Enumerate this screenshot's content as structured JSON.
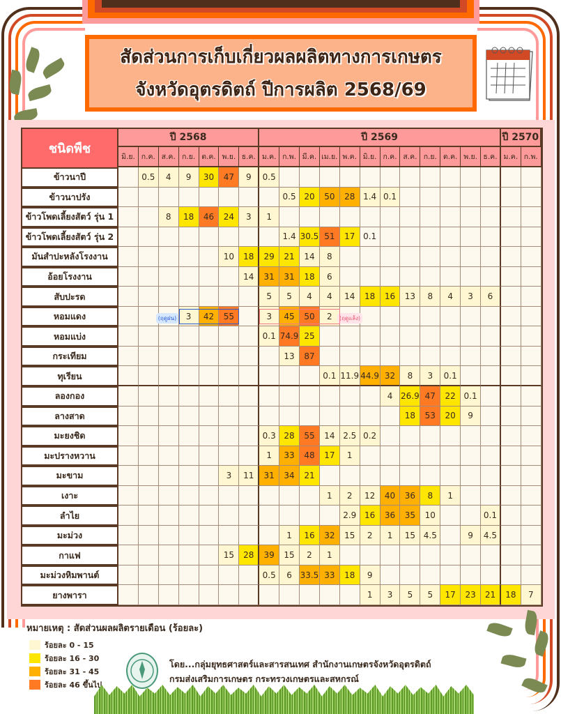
{
  "header": {
    "title_line1": "สัดส่วนการเก็บเกี่ยวผลผลิตทางการเกษตร",
    "title_line2": "จังหวัดอุตรดิตถ์  ปีการผลิต 2568/69"
  },
  "table": {
    "crop_header": "ชนิดพืช",
    "years": [
      {
        "label": "ปี 2568",
        "span": 7
      },
      {
        "label": "ปี 2569",
        "span": 12
      },
      {
        "label": "ปี 2570",
        "span": 2
      }
    ],
    "months": [
      "มิ.ย.",
      "ก.ค.",
      "ส.ค.",
      "ก.ย.",
      "ต.ค.",
      "พ.ย.",
      "ธ.ค.",
      "ม.ค.",
      "ก.พ.",
      "มี.ค.",
      "เม.ย.",
      "พ.ค.",
      "มิ.ย.",
      "ก.ค.",
      "ส.ค.",
      "ก.ย.",
      "ต.ค.",
      "พ.ย.",
      "ธ.ค.",
      "ม.ค.",
      "ก.พ."
    ],
    "rows": [
      {
        "crop": "ข้าวนาปี",
        "values": [
          "",
          "0.5",
          "4",
          "9",
          "30",
          "47",
          "9",
          "0.5",
          "",
          "",
          "",
          "",
          "",
          "",
          "",
          "",
          "",
          "",
          "",
          "",
          ""
        ],
        "levels": [
          0,
          1,
          1,
          1,
          2,
          4,
          1,
          1,
          0,
          0,
          0,
          0,
          0,
          0,
          0,
          0,
          0,
          0,
          0,
          0,
          0
        ]
      },
      {
        "crop": "ข้าวนาปรัง",
        "values": [
          "",
          "",
          "",
          "",
          "",
          "",
          "",
          "",
          "0.5",
          "20",
          "50",
          "28",
          "1.4",
          "0.1",
          "",
          "",
          "",
          "",
          "",
          "",
          ""
        ],
        "levels": [
          0,
          0,
          0,
          0,
          0,
          0,
          0,
          0,
          1,
          2,
          3,
          3,
          1,
          1,
          0,
          0,
          0,
          0,
          0,
          0,
          0
        ]
      },
      {
        "crop": "ข้าวโพดเลี้ยงสัตว์ รุ่น 1",
        "values": [
          "",
          "",
          "8",
          "18",
          "46",
          "24",
          "3",
          "1",
          "",
          "",
          "",
          "",
          "",
          "",
          "",
          "",
          "",
          "",
          "",
          "",
          ""
        ],
        "levels": [
          0,
          0,
          1,
          2,
          4,
          2,
          1,
          1,
          0,
          0,
          0,
          0,
          0,
          0,
          0,
          0,
          0,
          0,
          0,
          0,
          0
        ]
      },
      {
        "crop": "ข้าวโพดเลี้ยงสัตว์ รุ่น 2",
        "values": [
          "",
          "",
          "",
          "",
          "",
          "",
          "",
          "",
          "1.4",
          "30.5",
          "51",
          "17",
          "0.1",
          "",
          "",
          "",
          "",
          "",
          "",
          "",
          ""
        ],
        "levels": [
          0,
          0,
          0,
          0,
          0,
          0,
          0,
          0,
          1,
          2,
          4,
          2,
          0,
          0,
          0,
          0,
          0,
          0,
          0,
          0,
          0
        ]
      },
      {
        "crop": "มันสำปะหลังโรงงาน",
        "values": [
          "",
          "",
          "",
          "",
          "",
          "10",
          "18",
          "29",
          "21",
          "14",
          "8",
          "",
          "",
          "",
          "",
          "",
          "",
          "",
          "",
          "",
          ""
        ],
        "levels": [
          0,
          0,
          0,
          0,
          0,
          1,
          2,
          2,
          2,
          1,
          1,
          0,
          0,
          0,
          0,
          0,
          0,
          0,
          0,
          0,
          0
        ]
      },
      {
        "crop": "อ้อยโรงงาน",
        "values": [
          "",
          "",
          "",
          "",
          "",
          "",
          "14",
          "31",
          "31",
          "18",
          "6",
          "",
          "",
          "",
          "",
          "",
          "",
          "",
          "",
          "",
          ""
        ],
        "levels": [
          0,
          0,
          0,
          0,
          0,
          0,
          1,
          3,
          3,
          2,
          1,
          0,
          0,
          0,
          0,
          0,
          0,
          0,
          0,
          0,
          0
        ]
      },
      {
        "crop": "สับปะรด",
        "values": [
          "",
          "",
          "",
          "",
          "",
          "",
          "",
          "5",
          "5",
          "4",
          "4",
          "14",
          "18",
          "16",
          "13",
          "8",
          "4",
          "3",
          "6",
          "",
          ""
        ],
        "levels": [
          0,
          0,
          0,
          0,
          0,
          0,
          0,
          1,
          1,
          1,
          1,
          1,
          2,
          2,
          1,
          1,
          1,
          1,
          1,
          0,
          0
        ]
      },
      {
        "crop": "หอมแดง",
        "values": [
          "",
          "",
          "",
          "3",
          "42",
          "55",
          "",
          "3",
          "45",
          "50",
          "2",
          "",
          "",
          "",
          "",
          "",
          "",
          "",
          "",
          "",
          ""
        ],
        "levels": [
          0,
          0,
          0,
          1,
          3,
          4,
          0,
          1,
          3,
          4,
          1,
          0,
          0,
          0,
          0,
          0,
          0,
          0,
          0,
          0,
          0
        ],
        "season_notes": [
          "(ฤดูฝน)",
          "(ฤดูแล้ง)"
        ]
      },
      {
        "crop": "หอมแบ่ง",
        "values": [
          "",
          "",
          "",
          "",
          "",
          "",
          "",
          "0.1",
          "74.9",
          "25",
          "",
          "",
          "",
          "",
          "",
          "",
          "",
          "",
          "",
          "",
          ""
        ],
        "levels": [
          0,
          0,
          0,
          0,
          0,
          0,
          0,
          1,
          4,
          2,
          0,
          0,
          0,
          0,
          0,
          0,
          0,
          0,
          0,
          0,
          0
        ]
      },
      {
        "crop": "กระเทียม",
        "values": [
          "",
          "",
          "",
          "",
          "",
          "",
          "",
          "",
          "13",
          "87",
          "",
          "",
          "",
          "",
          "",
          "",
          "",
          "",
          "",
          "",
          ""
        ],
        "levels": [
          0,
          0,
          0,
          0,
          0,
          0,
          0,
          0,
          1,
          4,
          0,
          0,
          0,
          0,
          0,
          0,
          0,
          0,
          0,
          0,
          0
        ]
      },
      {
        "crop": "ทุเรียน",
        "values": [
          "",
          "",
          "",
          "",
          "",
          "",
          "",
          "",
          "",
          "",
          "0.1",
          "11.9",
          "44.9",
          "32",
          "8",
          "3",
          "0.1",
          "",
          "",
          "",
          ""
        ],
        "levels": [
          0,
          0,
          0,
          0,
          0,
          0,
          0,
          0,
          0,
          0,
          1,
          1,
          3,
          3,
          1,
          1,
          1,
          0,
          0,
          0,
          0
        ]
      },
      {
        "crop": "ลองกอง",
        "values": [
          "",
          "",
          "",
          "",
          "",
          "",
          "",
          "",
          "",
          "",
          "",
          "",
          "",
          "4",
          "26.9",
          "47",
          "22",
          "0.1",
          "",
          "",
          ""
        ],
        "levels": [
          0,
          0,
          0,
          0,
          0,
          0,
          0,
          0,
          0,
          0,
          0,
          0,
          0,
          1,
          2,
          4,
          2,
          1,
          0,
          0,
          0
        ]
      },
      {
        "crop": "ลางสาด",
        "values": [
          "",
          "",
          "",
          "",
          "",
          "",
          "",
          "",
          "",
          "",
          "",
          "",
          "",
          "",
          "18",
          "53",
          "20",
          "9",
          "",
          "",
          ""
        ],
        "levels": [
          0,
          0,
          0,
          0,
          0,
          0,
          0,
          0,
          0,
          0,
          0,
          0,
          0,
          0,
          2,
          4,
          2,
          1,
          0,
          0,
          0
        ]
      },
      {
        "crop": "มะยงชิด",
        "values": [
          "",
          "",
          "",
          "",
          "",
          "",
          "",
          "0.3",
          "28",
          "55",
          "14",
          "2.5",
          "0.2",
          "",
          "",
          "",
          "",
          "",
          "",
          "",
          ""
        ],
        "levels": [
          0,
          0,
          0,
          0,
          0,
          0,
          0,
          1,
          2,
          4,
          1,
          1,
          1,
          0,
          0,
          0,
          0,
          0,
          0,
          0,
          0
        ]
      },
      {
        "crop": "มะปรางหวาน",
        "values": [
          "",
          "",
          "",
          "",
          "",
          "",
          "",
          "1",
          "33",
          "48",
          "17",
          "1",
          "",
          "",
          "",
          "",
          "",
          "",
          "",
          "",
          ""
        ],
        "levels": [
          0,
          0,
          0,
          0,
          0,
          0,
          0,
          1,
          3,
          4,
          2,
          1,
          0,
          0,
          0,
          0,
          0,
          0,
          0,
          0,
          0
        ]
      },
      {
        "crop": "มะขาม",
        "values": [
          "",
          "",
          "",
          "",
          "",
          "3",
          "11",
          "31",
          "34",
          "21",
          "",
          "",
          "",
          "",
          "",
          "",
          "",
          "",
          "",
          "",
          ""
        ],
        "levels": [
          0,
          0,
          0,
          0,
          0,
          1,
          1,
          3,
          3,
          2,
          0,
          0,
          0,
          0,
          0,
          0,
          0,
          0,
          0,
          0,
          0
        ]
      },
      {
        "crop": "เงาะ",
        "values": [
          "",
          "",
          "",
          "",
          "",
          "",
          "",
          "",
          "",
          "",
          "1",
          "2",
          "12",
          "40",
          "36",
          "8",
          "1",
          "",
          "",
          "",
          ""
        ],
        "levels": [
          0,
          0,
          0,
          0,
          0,
          0,
          0,
          0,
          0,
          0,
          1,
          1,
          1,
          3,
          3,
          2,
          1,
          0,
          0,
          0,
          0
        ]
      },
      {
        "crop": "ลำไย",
        "values": [
          "",
          "",
          "",
          "",
          "",
          "",
          "",
          "",
          "",
          "",
          "",
          "2.9",
          "16",
          "36",
          "35",
          "10",
          "",
          "",
          "0.1",
          "",
          ""
        ],
        "levels": [
          0,
          0,
          0,
          0,
          0,
          0,
          0,
          0,
          0,
          0,
          0,
          1,
          2,
          3,
          3,
          1,
          0,
          0,
          1,
          0,
          0
        ]
      },
      {
        "crop": "มะม่วง",
        "values": [
          "",
          "",
          "",
          "",
          "",
          "",
          "",
          "",
          "1",
          "16",
          "32",
          "15",
          "2",
          "1",
          "15",
          "4.5",
          "",
          "9",
          "4.5",
          "",
          ""
        ],
        "levels": [
          0,
          0,
          0,
          0,
          0,
          0,
          0,
          0,
          1,
          2,
          3,
          1,
          1,
          1,
          1,
          1,
          0,
          1,
          1,
          0,
          0
        ]
      },
      {
        "crop": "กาแฟ",
        "values": [
          "",
          "",
          "",
          "",
          "",
          "15",
          "28",
          "39",
          "15",
          "2",
          "1",
          "",
          "",
          "",
          "",
          "",
          "",
          "",
          "",
          "",
          ""
        ],
        "levels": [
          0,
          0,
          0,
          0,
          0,
          1,
          2,
          3,
          1,
          1,
          1,
          0,
          0,
          0,
          0,
          0,
          0,
          0,
          0,
          0,
          0
        ]
      },
      {
        "crop": "มะม่วงหิมพานต์",
        "values": [
          "",
          "",
          "",
          "",
          "",
          "",
          "",
          "0.5",
          "6",
          "33.5",
          "33",
          "18",
          "9",
          "",
          "",
          "",
          "",
          "",
          "",
          "",
          ""
        ],
        "levels": [
          0,
          0,
          0,
          0,
          0,
          0,
          0,
          1,
          1,
          3,
          3,
          2,
          1,
          0,
          0,
          0,
          0,
          0,
          0,
          0,
          0
        ]
      },
      {
        "crop": "ยางพารา",
        "values": [
          "",
          "",
          "",
          "",
          "",
          "",
          "",
          "",
          "",
          "",
          "",
          "",
          "1",
          "3",
          "5",
          "5",
          "17",
          "23",
          "21",
          "18",
          "7"
        ],
        "levels": [
          0,
          0,
          0,
          0,
          0,
          0,
          0,
          0,
          0,
          0,
          0,
          0,
          1,
          1,
          1,
          1,
          2,
          2,
          2,
          2,
          1
        ]
      }
    ]
  },
  "legend": {
    "title": "หมายเหตุ : สัดส่วนผลผลิตรายเดือน (ร้อยละ)",
    "items": [
      {
        "label": "ร้อยละ 0 - 15",
        "color": "#fff6d2"
      },
      {
        "label": "ร้อยละ 16 - 30",
        "color": "#ffe600"
      },
      {
        "label": "ร้อยละ 31 - 45",
        "color": "#ffb000"
      },
      {
        "label": "ร้อยละ 46 ขึ้นไป",
        "color": "#ff7a22"
      }
    ]
  },
  "credit": {
    "line1": "โดย...กลุ่มยุทธศาสตร์และสารสนเทศ สำนักงานเกษตรจังหวัดอุตรดิตถ์",
    "line2": "กรมส่งเสริมการเกษตร กระทรวงเกษตรและสหกรณ์"
  }
}
